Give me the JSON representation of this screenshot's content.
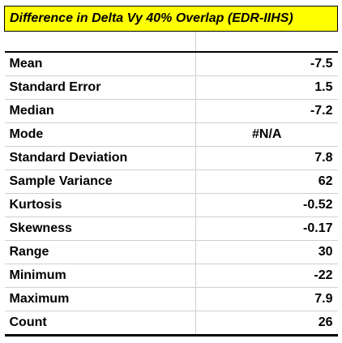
{
  "sheet": {
    "title": "Difference in Delta Vy 40% Overlap (EDR-IIHS)",
    "rows": [
      {
        "label": "Mean",
        "value": "-7.5",
        "align": "right"
      },
      {
        "label": "Standard Error",
        "value": "1.5",
        "align": "right"
      },
      {
        "label": "Median",
        "value": "-7.2",
        "align": "right"
      },
      {
        "label": "Mode",
        "value": "#N/A",
        "align": "center"
      },
      {
        "label": "Standard Deviation",
        "value": "7.8",
        "align": "right"
      },
      {
        "label": "Sample Variance",
        "value": "62",
        "align": "right"
      },
      {
        "label": "Kurtosis",
        "value": "-0.52",
        "align": "right"
      },
      {
        "label": "Skewness",
        "value": "-0.17",
        "align": "right"
      },
      {
        "label": "Range",
        "value": "30",
        "align": "right"
      },
      {
        "label": "Minimum",
        "value": "-22",
        "align": "right"
      },
      {
        "label": "Maximum",
        "value": "7.9",
        "align": "right"
      },
      {
        "label": "Count",
        "value": "26",
        "align": "right"
      }
    ]
  }
}
